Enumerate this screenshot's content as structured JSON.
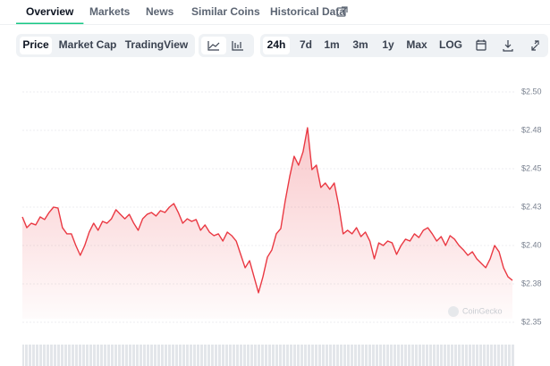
{
  "tabs": [
    {
      "label": "Overview",
      "active": true
    },
    {
      "label": "Markets",
      "active": false
    },
    {
      "label": "News",
      "active": false
    },
    {
      "label": "Similar Coins",
      "active": false
    },
    {
      "label": "Historical Data",
      "active": false
    }
  ],
  "toolbar": {
    "views": [
      {
        "label": "Price",
        "active": true
      },
      {
        "label": "Market Cap",
        "active": false
      },
      {
        "label": "TradingView",
        "active": false
      }
    ],
    "ranges": [
      {
        "label": "24h",
        "active": true
      },
      {
        "label": "7d",
        "active": false
      },
      {
        "label": "1m",
        "active": false
      },
      {
        "label": "3m",
        "active": false
      },
      {
        "label": "1y",
        "active": false
      },
      {
        "label": "Max",
        "active": false
      },
      {
        "label": "LOG",
        "active": false
      }
    ]
  },
  "watermark": "CoinGecko",
  "chart_data": {
    "type": "line",
    "color": "#ea3943",
    "fill": true,
    "grid": true,
    "ylim": [
      2.35,
      2.5
    ],
    "yticks": [
      {
        "value": 2.5,
        "label": "$2.50"
      },
      {
        "value": 2.475,
        "label": "$2.48"
      },
      {
        "value": 2.45,
        "label": "$2.45"
      },
      {
        "value": 2.425,
        "label": "$2.43"
      },
      {
        "value": 2.4,
        "label": "$2.40"
      },
      {
        "value": 2.375,
        "label": "$2.38"
      },
      {
        "value": 2.35,
        "label": "$2.35"
      }
    ],
    "values": [
      2.4186,
      2.4116,
      2.4145,
      2.4134,
      2.4186,
      2.4169,
      2.4215,
      2.425,
      2.4244,
      2.4116,
      2.4076,
      2.4076,
      2.4,
      2.3936,
      2.4,
      2.4087,
      2.4145,
      2.4099,
      2.4157,
      2.4145,
      2.4174,
      2.4233,
      2.4203,
      2.4174,
      2.4203,
      2.4145,
      2.4099,
      2.4174,
      2.4203,
      2.4215,
      2.4192,
      2.4227,
      2.4215,
      2.425,
      2.4273,
      2.4215,
      2.4145,
      2.4174,
      2.4157,
      2.4169,
      2.4099,
      2.4134,
      2.4087,
      2.4064,
      2.4076,
      2.4029,
      2.4087,
      2.4064,
      2.4029,
      2.3942,
      2.3855,
      2.3901,
      2.3796,
      2.3692,
      2.3796,
      2.3924,
      2.3971,
      2.4076,
      2.411,
      2.4291,
      2.4448,
      2.4581,
      2.4523,
      2.461,
      2.4767,
      2.4494,
      2.4523,
      2.4378,
      2.4407,
      2.4366,
      2.4407,
      2.4262,
      2.4076,
      2.4099,
      2.4076,
      2.4116,
      2.4058,
      2.4087,
      2.4029,
      2.3913,
      2.4017,
      2.4,
      2.4029,
      2.4017,
      2.3942,
      2.4,
      2.4041,
      2.4029,
      2.4076,
      2.4052,
      2.4099,
      2.4116,
      2.4076,
      2.4029,
      2.4058,
      2.4,
      2.4064,
      2.4041,
      2.4,
      2.3971,
      2.3936,
      2.3959,
      2.3913,
      2.3884,
      2.3855,
      2.3913,
      2.4,
      2.3959,
      2.3855,
      2.3796,
      2.3773
    ]
  }
}
